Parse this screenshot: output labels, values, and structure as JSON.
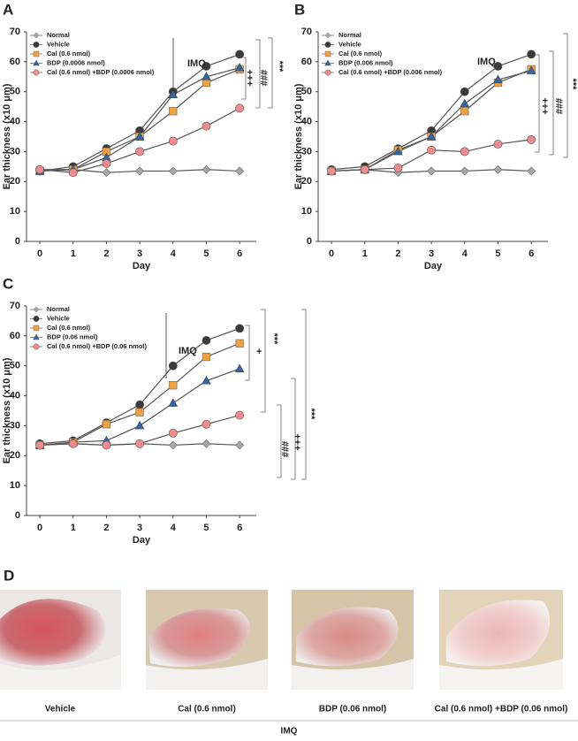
{
  "chart_data": [
    {
      "type": "line",
      "panel": "A",
      "ylabel": "Ear thickness (x10 μm)",
      "xlabel": "Day",
      "x": [
        0,
        1,
        2,
        3,
        4,
        5,
        6
      ],
      "xlim": [
        -0.4,
        6.5
      ],
      "xticks": [
        0,
        1,
        2,
        3,
        4,
        5,
        6
      ],
      "ylim": [
        0,
        70
      ],
      "yticks": [
        0,
        10,
        20,
        30,
        40,
        50,
        60,
        70
      ],
      "series": [
        {
          "name": "Normal",
          "color": "#a6a6a6",
          "marker": "diamond",
          "values": [
            24,
            24,
            23,
            23.5,
            23.5,
            24,
            23.5
          ]
        },
        {
          "name": "Vehicle",
          "color": "#3a3a3a",
          "marker": "circle",
          "values": [
            23.5,
            25,
            31,
            37,
            50,
            58.5,
            62.5
          ]
        },
        {
          "name": "Cal (0.6 nmol)",
          "color": "#f4a03c",
          "marker": "square",
          "values": [
            23.5,
            24,
            30,
            35,
            43.5,
            53,
            57.5
          ]
        },
        {
          "name": "BDP (0.0006 nmol)",
          "color": "#2e68a8",
          "marker": "triangle",
          "values": [
            23.5,
            24,
            28,
            35,
            49,
            55,
            58
          ]
        },
        {
          "name": "Cal (0.6 nmol) +BDP (0.0006 nmol)",
          "color": "#f28a8c",
          "marker": "circle",
          "values": [
            24,
            23,
            26,
            30,
            33.5,
            38.5,
            44.5
          ]
        }
      ],
      "annotations": [
        "IMQ",
        "+++",
        "###",
        "***"
      ]
    },
    {
      "type": "line",
      "panel": "B",
      "ylabel": "Ear thickness (x10 μm)",
      "xlabel": "Day",
      "x": [
        0,
        1,
        2,
        3,
        4,
        5,
        6
      ],
      "xlim": [
        -0.4,
        6.5
      ],
      "xticks": [
        0,
        1,
        2,
        3,
        4,
        5,
        6
      ],
      "ylim": [
        0,
        70
      ],
      "yticks": [
        0,
        10,
        20,
        30,
        40,
        50,
        60,
        70
      ],
      "series": [
        {
          "name": "Normal",
          "color": "#a6a6a6",
          "marker": "diamond",
          "values": [
            23.5,
            24,
            23,
            23.5,
            23.5,
            24,
            23.5
          ]
        },
        {
          "name": "Vehicle",
          "color": "#3a3a3a",
          "marker": "circle",
          "values": [
            24,
            25,
            31,
            37,
            50,
            58.5,
            62.5
          ]
        },
        {
          "name": "Cal (0.6 nmol)",
          "color": "#f4a03c",
          "marker": "square",
          "values": [
            23.5,
            24,
            30.5,
            35,
            43.5,
            53,
            57.5
          ]
        },
        {
          "name": "BDP (0.006 nmol)",
          "color": "#2e68a8",
          "marker": "triangle",
          "values": [
            23.5,
            24,
            30,
            35,
            46,
            54,
            57
          ]
        },
        {
          "name": "Cal (0.6 nmol) +BDP (0.006 nmol)",
          "color": "#f28a8c",
          "marker": "circle",
          "values": [
            23.5,
            24,
            24.5,
            30.5,
            30,
            32.5,
            34
          ]
        }
      ],
      "annotations": [
        "IMQ",
        "+++",
        "###",
        "***"
      ]
    },
    {
      "type": "line",
      "panel": "C",
      "ylabel": "Ear thickness (x10 μm)",
      "xlabel": "Day",
      "x": [
        0,
        1,
        2,
        3,
        4,
        5,
        6
      ],
      "xlim": [
        -0.4,
        6.5
      ],
      "xticks": [
        0,
        1,
        2,
        3,
        4,
        5,
        6
      ],
      "ylim": [
        0,
        70
      ],
      "yticks": [
        0,
        10,
        20,
        30,
        40,
        50,
        60,
        70
      ],
      "series": [
        {
          "name": "Normal",
          "color": "#a6a6a6",
          "marker": "diamond",
          "values": [
            23.5,
            24,
            23.5,
            24,
            23.5,
            24,
            23.5
          ]
        },
        {
          "name": "Vehicle",
          "color": "#3a3a3a",
          "marker": "circle",
          "values": [
            24,
            25,
            31,
            37,
            50,
            58.5,
            62.5
          ]
        },
        {
          "name": "Cal (0.6 nmol)",
          "color": "#f4a03c",
          "marker": "square",
          "values": [
            23.5,
            24.5,
            30.5,
            34.5,
            43.5,
            53,
            57.5
          ]
        },
        {
          "name": "BDP (0.06 nmol)",
          "color": "#2e68a8",
          "marker": "triangle",
          "values": [
            23.5,
            24.5,
            25,
            30,
            37.5,
            45,
            49
          ]
        },
        {
          "name": "Cal (0.6 nmol) +BDP (0.06 nmol)",
          "color": "#f28a8c",
          "marker": "circle",
          "values": [
            23.5,
            24,
            23.5,
            24,
            27.5,
            30.5,
            33.5
          ]
        }
      ],
      "annotations": [
        "IMQ",
        "+",
        "***",
        "###",
        "+++",
        "***"
      ]
    }
  ],
  "photos": {
    "panel": "D",
    "captions": [
      "Vehicle",
      "Cal (0.6 nmol)",
      "BDP (0.06 nmol)",
      "Cal (0.6 nmol) +BDP (0.06 nmol)"
    ],
    "group_label": "IMQ"
  }
}
